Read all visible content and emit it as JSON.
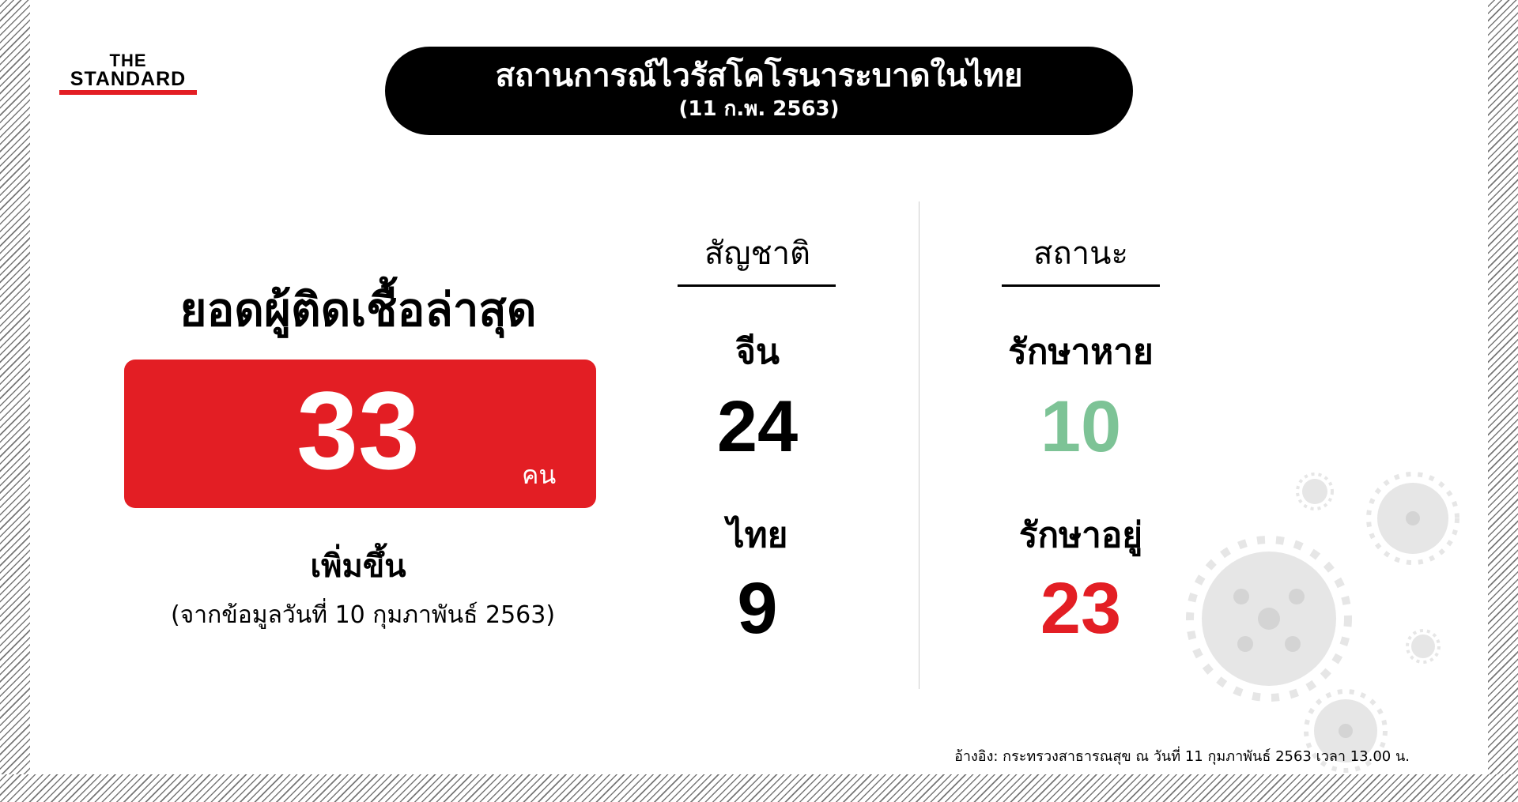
{
  "logo": {
    "line1": "THE",
    "line2": "STANDARD"
  },
  "header": {
    "title": "สถานการณ์ไวรัสโคโรนาระบาดในไทย",
    "date": "(11 ก.พ. 2563)"
  },
  "summary": {
    "heading": "ยอดผู้ติดเชื้อล่าสุด",
    "count": "33",
    "unit": "คน",
    "label": "เพิ่มขึ้น",
    "note": "(จากข้อมูลวันที่ 10 กุมภาพันธ์ 2563)"
  },
  "nationality": {
    "heading": "สัญชาติ",
    "items": [
      {
        "label": "จีน",
        "value": "24"
      },
      {
        "label": "ไทย",
        "value": "9"
      }
    ]
  },
  "status": {
    "heading": "สถานะ",
    "items": [
      {
        "label": "รักษาหาย",
        "value": "10",
        "color": "#7dc396"
      },
      {
        "label": "รักษาอยู่",
        "value": "23",
        "color": "#e31e24"
      }
    ]
  },
  "footer": {
    "source": "อ้างอิง: กระทรวงสาธารณสุข ณ วันที่ 11 กุมภาพันธ์ 2563 เวลา 13.00 น."
  },
  "colors": {
    "accent": "#e31e24",
    "recovered": "#7dc396"
  },
  "decor": {
    "icon": "virus-icon"
  }
}
